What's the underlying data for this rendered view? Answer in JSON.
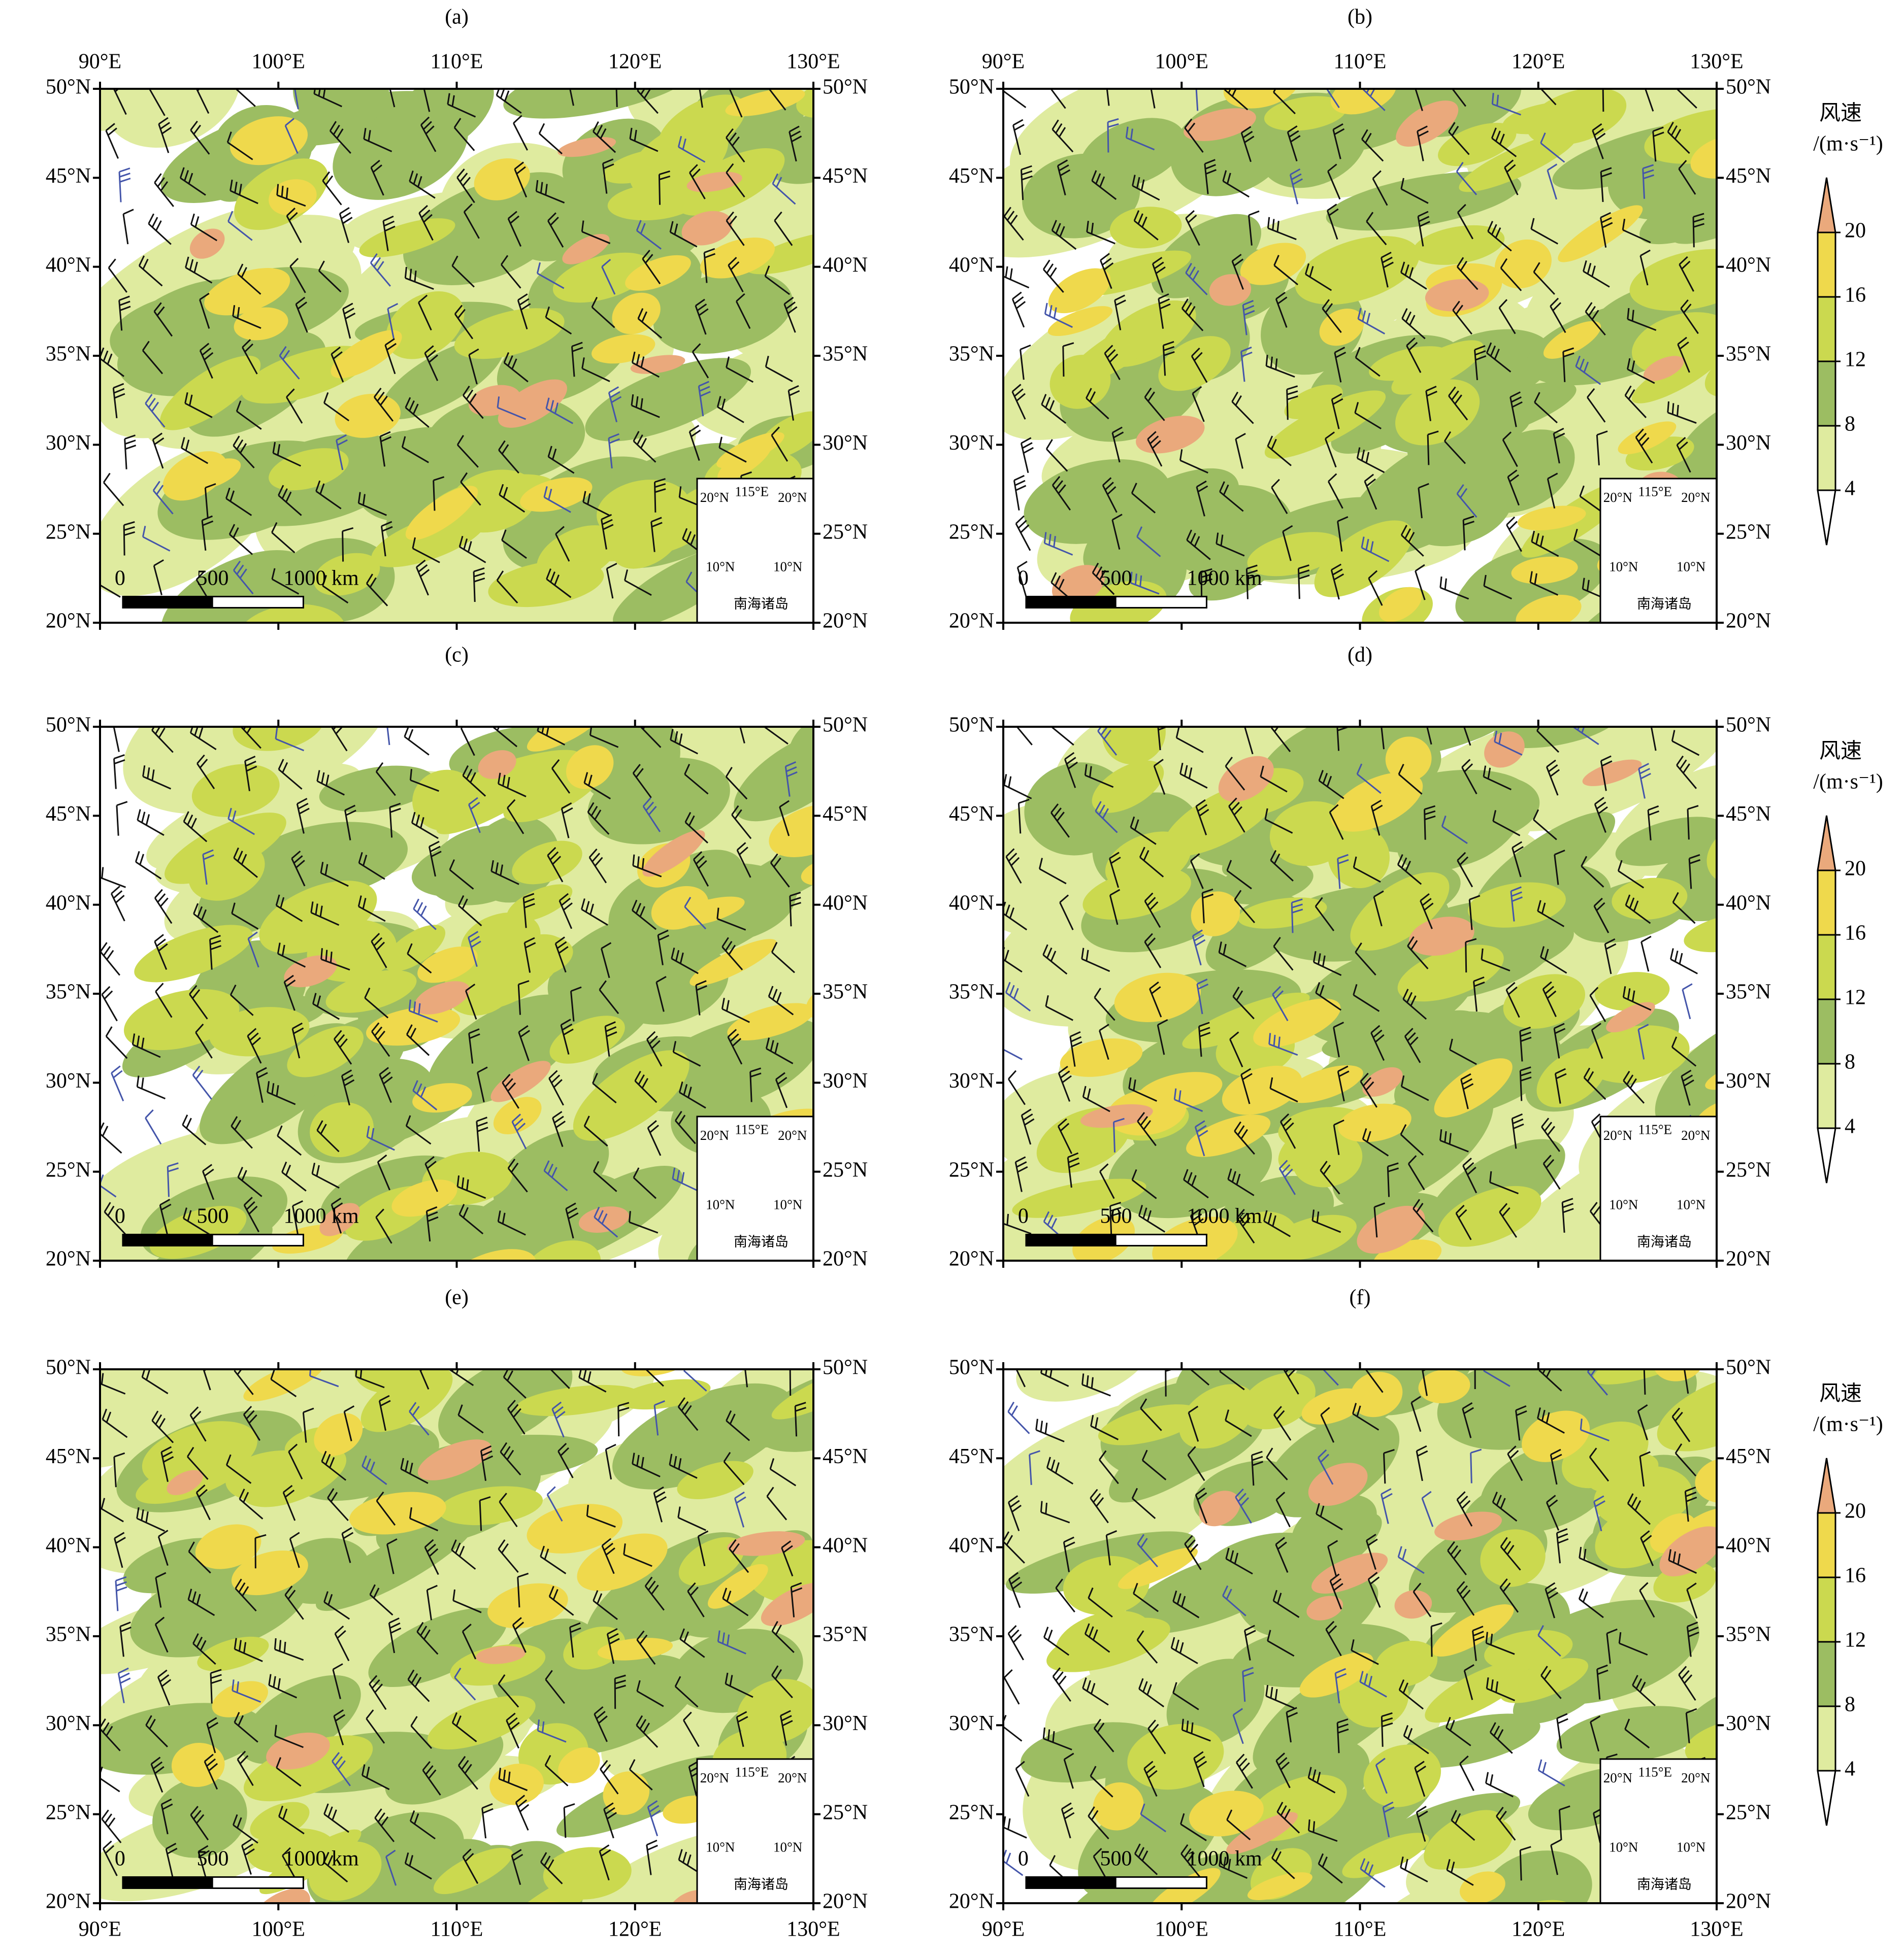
{
  "panels": [
    {
      "label": "(a)"
    },
    {
      "label": "(b)"
    },
    {
      "label": "(c)"
    },
    {
      "label": "(d)"
    },
    {
      "label": "(e)"
    },
    {
      "label": "(f)"
    }
  ],
  "x_axis": {
    "lim": [
      90,
      130
    ],
    "ticks": [
      {
        "value": 90,
        "label": "90°E"
      },
      {
        "value": 100,
        "label": "100°E"
      },
      {
        "value": 110,
        "label": "110°E"
      },
      {
        "value": 120,
        "label": "120°E"
      },
      {
        "value": 130,
        "label": "130°E"
      }
    ]
  },
  "y_axis": {
    "lim": [
      20,
      50
    ],
    "ticks": [
      {
        "value": 20,
        "label": "20°N"
      },
      {
        "value": 25,
        "label": "25°N"
      },
      {
        "value": 30,
        "label": "30°N"
      },
      {
        "value": 35,
        "label": "35°N"
      },
      {
        "value": 40,
        "label": "40°N"
      },
      {
        "value": 45,
        "label": "45°N"
      },
      {
        "value": 50,
        "label": "50°N"
      }
    ]
  },
  "colorbar": {
    "title": "风速",
    "unit": "/(m·s⁻¹)",
    "levels": [
      4,
      8,
      12,
      16,
      20
    ],
    "colors": [
      "#dfeb9f",
      "#9cbd62",
      "#cbd94f",
      "#efd94c",
      "#eaa97c"
    ]
  },
  "scale_bar": {
    "labels": [
      "0",
      "500",
      "1000 km"
    ]
  },
  "inset": {
    "lat_top": "20°N",
    "lon": "115°E",
    "lat_bottom": "10°N",
    "title": "南海诸岛"
  }
}
